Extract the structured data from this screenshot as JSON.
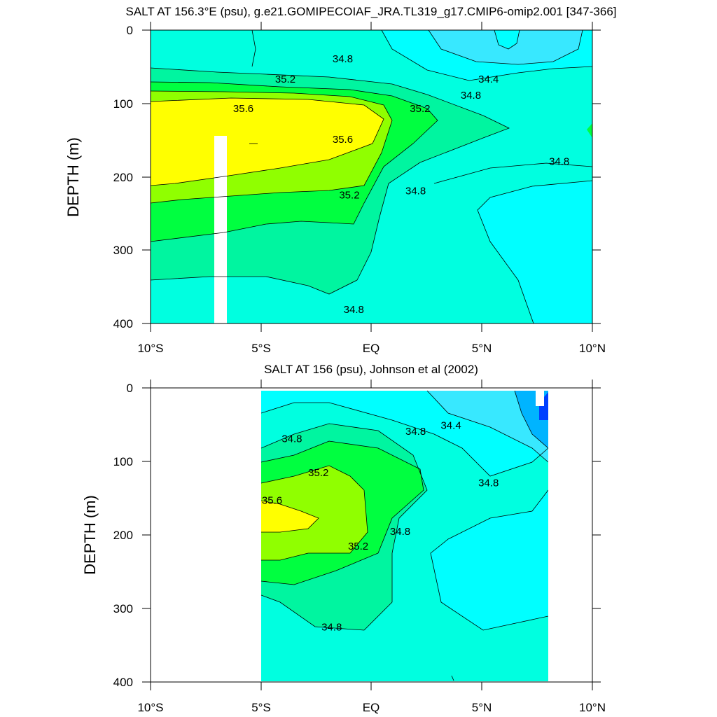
{
  "colors": {
    "band_34_2": "#00b4ff",
    "band_34_4": "#38e8ff",
    "band_34_6": "#00ffff",
    "band_34_8": "#00ffe0",
    "band_35_0": "#00f5a0",
    "band_35_2": "#00ff40",
    "band_35_4": "#90ff00",
    "band_35_6": "#ffff00",
    "band_low": "#0040ff"
  },
  "chart_data": [
    {
      "type": "contour",
      "title": "SALT AT 156.3°E (psu), g.e21.GOMIPECOIAF_JRA.TL319_g17.CMIP6-omip2.001 [347-366]",
      "ylabel": "DEPTH (m)",
      "xlabel": "",
      "x_ticks": [
        "10°S",
        "5°S",
        "EQ",
        "5°N",
        "10°N"
      ],
      "x_tick_values": [
        -10,
        -5,
        0,
        5,
        10
      ],
      "y_ticks": [
        "0",
        "100",
        "200",
        "300",
        "400"
      ],
      "y_tick_values": [
        0,
        100,
        200,
        300,
        400
      ],
      "xlim": [
        -10,
        10
      ],
      "ylim": [
        0,
        400
      ],
      "y_reversed": true,
      "data_x_range": [
        -10,
        10
      ],
      "contour_labels": [
        {
          "text": "34.8",
          "x": -1.3,
          "y": 40
        },
        {
          "text": "34.4",
          "x": 5.3,
          "y": 68
        },
        {
          "text": "34.8",
          "x": 4.5,
          "y": 90
        },
        {
          "text": "35.2",
          "x": -3.9,
          "y": 68
        },
        {
          "text": "35.2",
          "x": 2.2,
          "y": 108
        },
        {
          "text": "35.6",
          "x": -5.8,
          "y": 108
        },
        {
          "text": "35.6",
          "x": -1.3,
          "y": 150
        },
        {
          "text": "34.8",
          "x": 8.5,
          "y": 180
        },
        {
          "text": "35.2",
          "x": -1.0,
          "y": 226
        },
        {
          "text": "34.8",
          "x": 2.0,
          "y": 220
        },
        {
          "text": "34.8",
          "x": -0.8,
          "y": 382
        }
      ]
    },
    {
      "type": "contour",
      "title": "SALT AT 156 (psu), Johnson et al (2002)",
      "ylabel": "DEPTH (m)",
      "xlabel": "",
      "x_ticks": [
        "10°S",
        "5°S",
        "EQ",
        "5°N",
        "10°N"
      ],
      "x_tick_values": [
        -10,
        -5,
        0,
        5,
        10
      ],
      "y_ticks": [
        "0",
        "100",
        "200",
        "300",
        "400"
      ],
      "y_tick_values": [
        0,
        100,
        200,
        300,
        400
      ],
      "xlim": [
        -10,
        10
      ],
      "ylim": [
        0,
        400
      ],
      "y_reversed": true,
      "data_x_range": [
        -5,
        8
      ],
      "contour_labels": [
        {
          "text": "34.8",
          "x": -3.6,
          "y": 70
        },
        {
          "text": "34.4",
          "x": 3.6,
          "y": 52
        },
        {
          "text": "34.8",
          "x": 2.0,
          "y": 60
        },
        {
          "text": "35.2",
          "x": -2.4,
          "y": 116
        },
        {
          "text": "35.6",
          "x": -4.5,
          "y": 154
        },
        {
          "text": "34.8",
          "x": 5.3,
          "y": 130
        },
        {
          "text": "35.2",
          "x": -0.6,
          "y": 216
        },
        {
          "text": "34.8",
          "x": 1.3,
          "y": 196
        },
        {
          "text": "34.8",
          "x": -1.8,
          "y": 326
        }
      ]
    }
  ]
}
